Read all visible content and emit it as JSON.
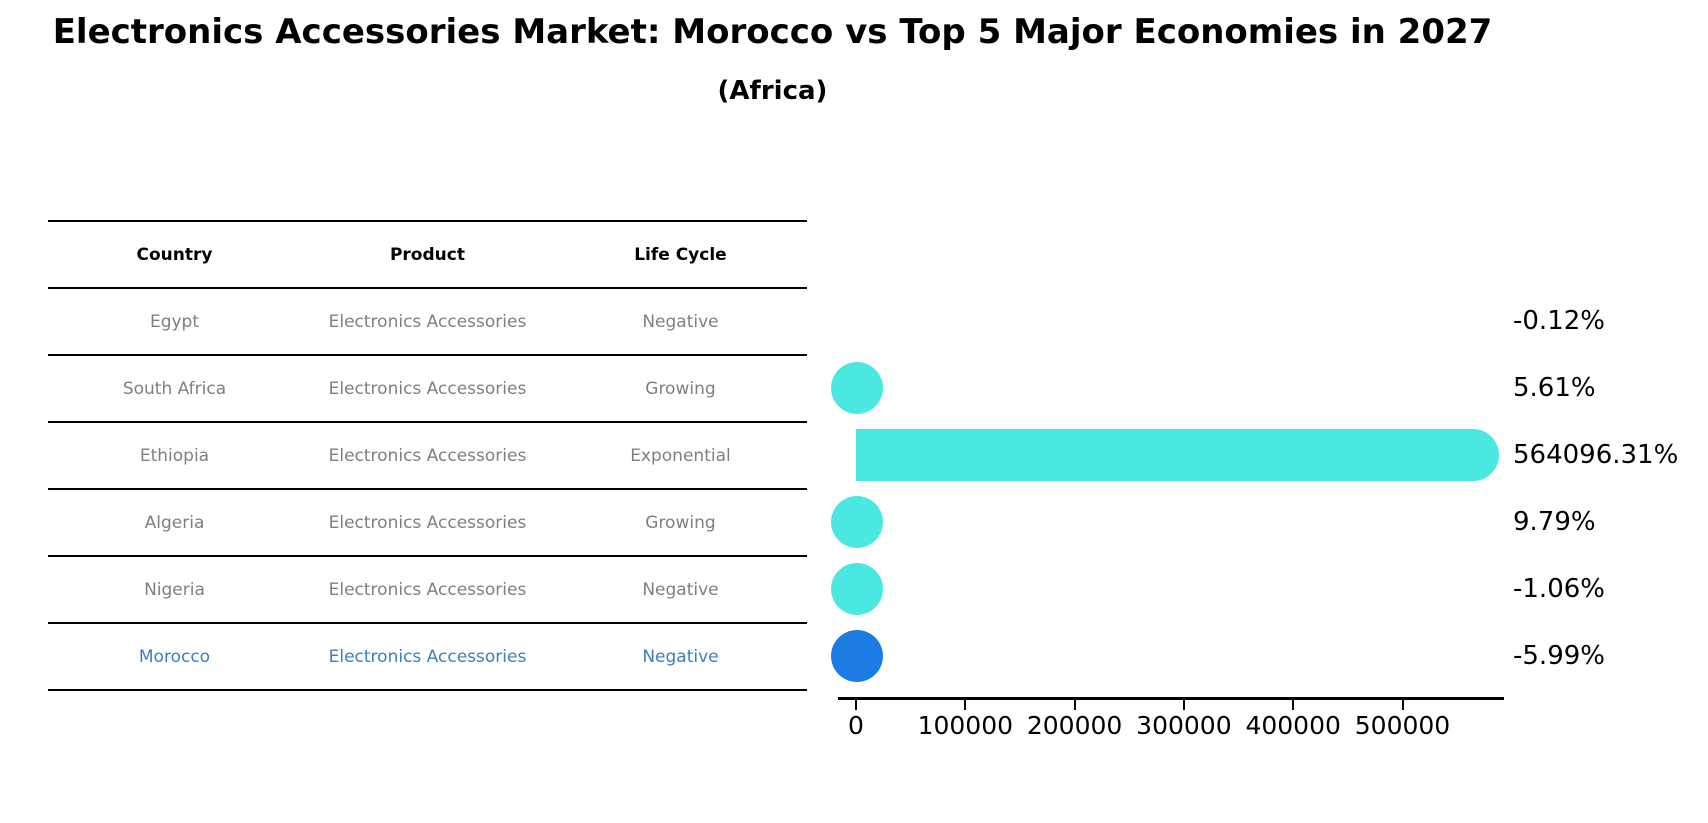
{
  "title": "Electronics Accessories Market: Morocco vs Top 5 Major Economies in 2027",
  "subtitle": "(Africa)",
  "table": {
    "headers": [
      "Country",
      "Product",
      "Life Cycle"
    ],
    "rows": [
      {
        "country": "Egypt",
        "product": "Electronics Accessories",
        "life_cycle": "Negative",
        "highlighted": false
      },
      {
        "country": "South Africa",
        "product": "Electronics Accessories",
        "life_cycle": "Growing",
        "highlighted": false
      },
      {
        "country": "Ethiopia",
        "product": "Electronics Accessories",
        "life_cycle": "Exponential",
        "highlighted": false
      },
      {
        "country": "Algeria",
        "product": "Electronics Accessories",
        "life_cycle": "Growing",
        "highlighted": false
      },
      {
        "country": "Nigeria",
        "product": "Electronics Accessories",
        "life_cycle": "Negative",
        "highlighted": false
      },
      {
        "country": "Morocco",
        "product": "Electronics Accessories",
        "life_cycle": "Negative",
        "highlighted": true
      }
    ]
  },
  "chart_data": {
    "type": "bar",
    "orientation": "horizontal",
    "title": "Electronics Accessories Market: Morocco vs Top 5 Major Economies in 2027 (Africa)",
    "categories": [
      "Egypt",
      "South Africa",
      "Ethiopia",
      "Algeria",
      "Nigeria",
      "Morocco"
    ],
    "values": [
      -0.12,
      5.61,
      564096.31,
      9.79,
      -1.06,
      -5.99
    ],
    "value_unit": "%",
    "x_ticks": [
      "0",
      "100000",
      "200000",
      "300000",
      "400000",
      "500000"
    ],
    "xlim": [
      -16500,
      593000
    ],
    "grid": false,
    "legend": "none",
    "rows": [
      {
        "category": "Egypt",
        "value": -0.12,
        "label": "-0.12%",
        "highlighted": false,
        "show_marker": false
      },
      {
        "category": "South Africa",
        "value": 5.61,
        "label": "5.61%",
        "highlighted": false,
        "show_marker": true
      },
      {
        "category": "Ethiopia",
        "value": 564096.31,
        "label": "564096.31%",
        "highlighted": false,
        "show_marker": true
      },
      {
        "category": "Algeria",
        "value": 9.79,
        "label": "9.79%",
        "highlighted": false,
        "show_marker": true
      },
      {
        "category": "Nigeria",
        "value": -1.06,
        "label": "-1.06%",
        "highlighted": false,
        "show_marker": true
      },
      {
        "category": "Morocco",
        "value": -5.99,
        "label": "-5.99%",
        "highlighted": true,
        "show_marker": true
      }
    ]
  },
  "colors": {
    "bar": "#4BE8E2",
    "bar_highlight": "#1D7CE4",
    "row_text": "#7F7F7F",
    "highlight_text": "#3D7EBF"
  }
}
